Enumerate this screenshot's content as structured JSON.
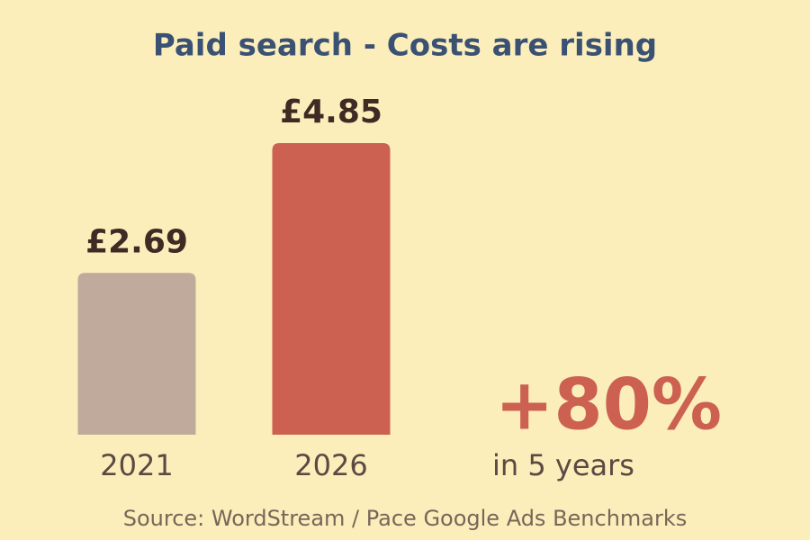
{
  "chart_data": {
    "type": "bar",
    "title": "Paid search - Costs are rising",
    "categories": [
      "2021",
      "2026"
    ],
    "values": [
      2.69,
      4.85
    ],
    "value_labels": [
      "£2.69",
      "£4.85"
    ],
    "colors": [
      "#bfaa9b",
      "#cc6151"
    ],
    "annotation": "+80%",
    "annotation_note": "in 5 years",
    "source": "Source: WordStream / Pace Google Ads Benchmarks"
  }
}
